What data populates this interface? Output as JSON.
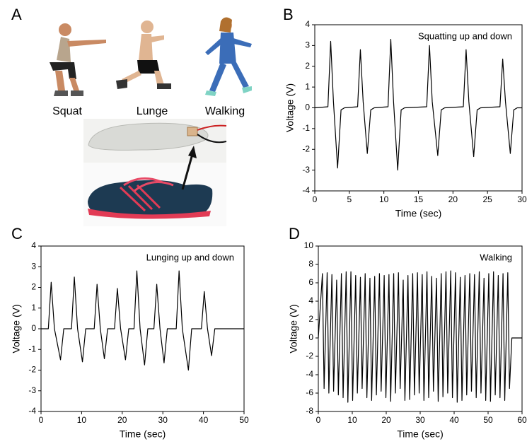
{
  "illustration": {
    "panel_label": "A",
    "labels": [
      "Squat",
      "Lunge",
      "Walking"
    ]
  },
  "chart_data": [
    {
      "type": "line",
      "panel_label": "B",
      "annotation": "Squatting up and down",
      "xlabel": "Time (sec)",
      "ylabel": "Voltage (V)",
      "color": "#000000",
      "xlim": [
        0,
        30
      ],
      "ylim": [
        -4,
        4
      ],
      "xticks": [
        0,
        5,
        10,
        15,
        20,
        25,
        30
      ],
      "yticks": [
        -4,
        -3,
        -2,
        -1,
        0,
        1,
        2,
        3,
        4
      ],
      "x": [
        0,
        1.9,
        2.3,
        2.7,
        3.3,
        3.8,
        4.3,
        6.2,
        6.6,
        7.0,
        7.6,
        8.1,
        8.6,
        10.6,
        11.0,
        11.4,
        12.0,
        12.5,
        13.0,
        16.2,
        16.6,
        17.0,
        17.8,
        18.3,
        18.8,
        21.5,
        21.9,
        22.3,
        23.0,
        23.5,
        24.0,
        26.8,
        27.2,
        27.6,
        28.3,
        28.8,
        29.3,
        30
      ],
      "values": [
        0,
        0.05,
        3.2,
        0.3,
        -2.9,
        -0.1,
        0,
        0.05,
        2.8,
        0.3,
        -2.2,
        -0.1,
        0,
        0.05,
        3.3,
        0.3,
        -3.0,
        -0.1,
        0,
        0.05,
        3.0,
        0.3,
        -2.3,
        -0.1,
        0,
        0.05,
        2.8,
        0.3,
        -2.35,
        -0.1,
        0,
        0.05,
        2.35,
        0.3,
        -2.2,
        -0.1,
        0,
        0
      ]
    },
    {
      "type": "line",
      "panel_label": "C",
      "annotation": "Lunging up and down",
      "xlabel": "Time (sec)",
      "ylabel": "Voltage (V)",
      "color": "#000000",
      "xlim": [
        0,
        50
      ],
      "ylim": [
        -4,
        4
      ],
      "xticks": [
        0,
        10,
        20,
        30,
        40,
        50
      ],
      "yticks": [
        -4,
        -3,
        -2,
        -1,
        0,
        1,
        2,
        3,
        4
      ],
      "x": [
        0,
        1.8,
        2.5,
        3.3,
        4.8,
        5.6,
        7.5,
        8.2,
        9.0,
        10.2,
        11.0,
        13.1,
        13.8,
        14.6,
        15.6,
        16.4,
        18.1,
        18.8,
        19.6,
        20.8,
        21.6,
        22.9,
        23.6,
        24.4,
        25.5,
        26.3,
        27.8,
        28.5,
        29.3,
        30.3,
        31.1,
        33.3,
        34.0,
        34.8,
        36.3,
        37.1,
        39.5,
        40.2,
        41.0,
        42.0,
        42.8,
        50
      ],
      "values": [
        0,
        0,
        2.25,
        0,
        -1.5,
        0,
        0,
        2.5,
        0,
        -1.6,
        0,
        0,
        2.15,
        0,
        -1.45,
        0,
        0,
        1.95,
        0,
        -1.5,
        0,
        0,
        2.8,
        0,
        -1.75,
        0,
        0,
        2.15,
        0,
        -1.65,
        0,
        0,
        2.8,
        0,
        -2.0,
        0,
        0,
        1.8,
        0,
        -1.3,
        0,
        0
      ]
    },
    {
      "type": "line",
      "panel_label": "D",
      "annotation": "Walking",
      "xlabel": "Time (sec)",
      "ylabel": "Voltage (V)",
      "color": "#000000",
      "xlim": [
        0,
        60
      ],
      "ylim": [
        -8,
        10
      ],
      "xticks": [
        0,
        10,
        20,
        30,
        40,
        50,
        60
      ],
      "yticks": [
        -8,
        -6,
        -4,
        -2,
        0,
        2,
        4,
        6,
        8,
        10
      ],
      "x": [
        0,
        1.2,
        1.7,
        2.6,
        3.1,
        4.0,
        4.5,
        5.4,
        5.9,
        6.8,
        7.3,
        8.2,
        8.7,
        9.6,
        10.1,
        11.0,
        11.5,
        12.4,
        12.9,
        13.8,
        14.3,
        15.2,
        15.7,
        16.6,
        17.1,
        18.0,
        18.5,
        19.4,
        19.9,
        20.8,
        21.3,
        22.2,
        22.7,
        23.6,
        24.1,
        25.0,
        25.5,
        26.4,
        26.9,
        27.8,
        28.3,
        29.2,
        29.7,
        30.6,
        31.1,
        32.0,
        32.5,
        33.4,
        33.9,
        34.8,
        35.3,
        36.2,
        36.7,
        37.6,
        38.1,
        39.0,
        39.5,
        40.4,
        40.9,
        41.8,
        42.3,
        43.2,
        43.7,
        44.6,
        45.1,
        46.0,
        46.5,
        47.4,
        47.9,
        48.8,
        49.3,
        50.2,
        50.7,
        51.6,
        52.1,
        53.0,
        53.5,
        54.4,
        54.9,
        55.8,
        56.3,
        57,
        60
      ],
      "values": [
        0,
        7.0,
        -5.5,
        7.1,
        -6.0,
        6.9,
        -5.8,
        6.3,
        -6.2,
        7.0,
        -6.5,
        7.2,
        -7.0,
        7.2,
        -6.8,
        6.8,
        -6.0,
        6.6,
        -5.5,
        7.0,
        -6.5,
        6.5,
        -6.8,
        6.7,
        -6.2,
        7.0,
        -5.8,
        6.8,
        -6.5,
        6.9,
        -6.9,
        7.0,
        -6.0,
        7.1,
        -5.5,
        6.3,
        -6.8,
        6.8,
        -6.7,
        7.0,
        -6.2,
        7.1,
        -6.0,
        6.9,
        -6.8,
        7.2,
        -6.5,
        6.7,
        -5.8,
        6.5,
        -6.9,
        7.0,
        -6.4,
        7.2,
        -6.0,
        7.3,
        -6.5,
        7.1,
        -7.0,
        6.6,
        -6.8,
        6.8,
        -6.2,
        7.0,
        -5.8,
        6.9,
        -6.5,
        7.2,
        -6.0,
        6.5,
        -6.8,
        7.0,
        -6.9,
        7.2,
        -6.2,
        6.8,
        -6.5,
        7.0,
        -6.8,
        7.1,
        -5.5,
        0,
        0
      ]
    }
  ]
}
